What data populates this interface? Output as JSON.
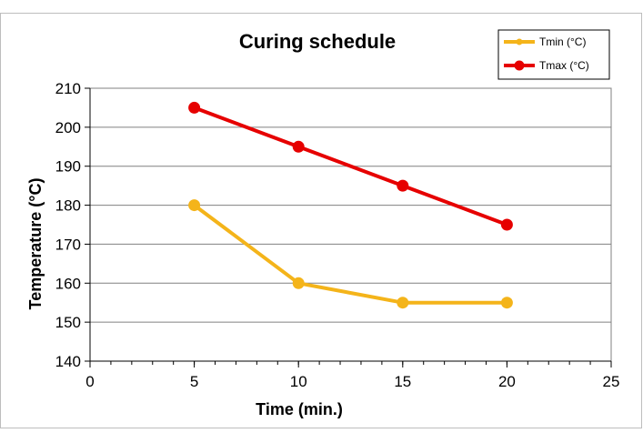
{
  "chart_data": {
    "type": "line",
    "title": "Curing schedule",
    "xlabel": "Time (min.)",
    "ylabel": "Temperature (°C)",
    "xlim": [
      0,
      25
    ],
    "ylim": [
      140,
      210
    ],
    "xticks": [
      0,
      5,
      10,
      15,
      20,
      25
    ],
    "yticks": [
      140,
      150,
      160,
      170,
      180,
      190,
      200,
      210
    ],
    "xtick_labels": [
      "0",
      "5",
      "10",
      "15",
      "20",
      "25"
    ],
    "ytick_labels": [
      "140",
      "150",
      "160",
      "170",
      "180",
      "190",
      "200",
      "210"
    ],
    "x_minor_step": 1,
    "grid": "horizontal major lines",
    "legend_position": "top-right",
    "series": [
      {
        "name": "Tmin (°C)",
        "color": "#f4b41a",
        "x": [
          5,
          10,
          15,
          20
        ],
        "y": [
          180,
          160,
          155,
          155
        ]
      },
      {
        "name": "Tmax (°C)",
        "color": "#e60000",
        "x": [
          5,
          10,
          15,
          20
        ],
        "y": [
          205,
          195,
          185,
          175
        ]
      }
    ]
  }
}
